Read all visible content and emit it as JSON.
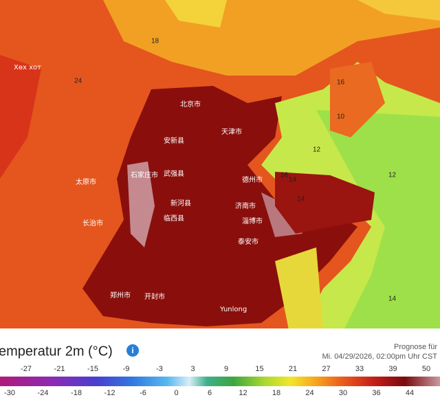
{
  "map": {
    "place_labels": [
      "Хөх хот",
      "北京市",
      "天津市",
      "安新县",
      "石家庄市",
      "太原市",
      "武强县",
      "德州市",
      "济南市",
      "淄博市",
      "泰安市",
      "长治市",
      "郑州市",
      "开封市",
      "新河县",
      "临西县",
      "Yunlong"
    ],
    "contour_labels": [
      "16",
      "10",
      "12",
      "14",
      "16",
      "14",
      "12",
      "14",
      "18",
      "24"
    ]
  },
  "legend": {
    "title": "emperatur 2m (°C)",
    "forecast_label": "Prognose für",
    "forecast_time": "Mi. 04/29/2026, 02:00pm Uhr CST",
    "ticks_top": [
      "-27",
      "-21",
      "-15",
      "-9",
      "-3",
      "3",
      "9",
      "15",
      "21",
      "27",
      "33",
      "39",
      "50"
    ],
    "ticks_bottom": [
      "-30",
      "-24",
      "-18",
      "-12",
      "-6",
      "0",
      "6",
      "12",
      "18",
      "24",
      "30",
      "36",
      "44"
    ]
  }
}
